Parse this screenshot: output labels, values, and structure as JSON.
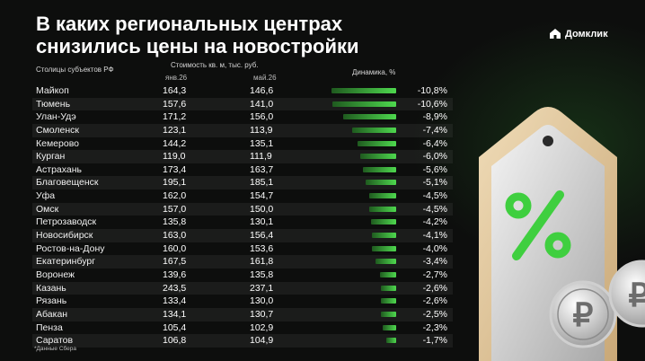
{
  "title": "В каких региональных центрах снизились цены на новостройки",
  "brand": "Домклик",
  "headers": {
    "city": "Столицы субъектов РФ",
    "price": "Стоимость кв. м, тыс. руб.",
    "jan": "янв.26",
    "may": "май.26",
    "dynamics": "Динамика, %"
  },
  "footnote": "*Данные Сбера",
  "colors": {
    "bar_start": "#1f5a1f",
    "bar_end": "#4ed84e",
    "background": "#0d0e0d",
    "accent_green": "#3fcf3f"
  },
  "chart_data": {
    "type": "table",
    "columns": [
      "Столицы субъектов РФ",
      "янв.26",
      "май.26",
      "Динамика, %"
    ],
    "rows": [
      {
        "city": "Майкоп",
        "jan": "164,3",
        "may": "146,6",
        "change": "-10,8%",
        "value": -10.8
      },
      {
        "city": "Тюмень",
        "jan": "157,6",
        "may": "141,0",
        "change": "-10,6%",
        "value": -10.6
      },
      {
        "city": "Улан-Удэ",
        "jan": "171,2",
        "may": "156,0",
        "change": "-8,9%",
        "value": -8.9
      },
      {
        "city": "Смоленск",
        "jan": "123,1",
        "may": "113,9",
        "change": "-7,4%",
        "value": -7.4
      },
      {
        "city": "Кемерово",
        "jan": "144,2",
        "may": "135,1",
        "change": "-6,4%",
        "value": -6.4
      },
      {
        "city": "Курган",
        "jan": "119,0",
        "may": "111,9",
        "change": "-6,0%",
        "value": -6.0
      },
      {
        "city": "Астрахань",
        "jan": "173,4",
        "may": "163,7",
        "change": "-5,6%",
        "value": -5.6
      },
      {
        "city": "Благовещенск",
        "jan": "195,1",
        "may": "185,1",
        "change": "-5,1%",
        "value": -5.1
      },
      {
        "city": "Уфа",
        "jan": "162,0",
        "may": "154,7",
        "change": "-4,5%",
        "value": -4.5
      },
      {
        "city": "Омск",
        "jan": "157,0",
        "may": "150,0",
        "change": "-4,5%",
        "value": -4.5
      },
      {
        "city": "Петрозаводск",
        "jan": "135,8",
        "may": "130,1",
        "change": "-4,2%",
        "value": -4.2
      },
      {
        "city": "Новосибирск",
        "jan": "163,0",
        "may": "156,4",
        "change": "-4,1%",
        "value": -4.1
      },
      {
        "city": "Ростов-на-Дону",
        "jan": "160,0",
        "may": "153,6",
        "change": "-4,0%",
        "value": -4.0
      },
      {
        "city": "Екатеринбург",
        "jan": "167,5",
        "may": "161,8",
        "change": "-3,4%",
        "value": -3.4
      },
      {
        "city": "Воронеж",
        "jan": "139,6",
        "may": "135,8",
        "change": "-2,7%",
        "value": -2.7
      },
      {
        "city": "Казань",
        "jan": "243,5",
        "may": "237,1",
        "change": "-2,6%",
        "value": -2.6
      },
      {
        "city": "Рязань",
        "jan": "133,4",
        "may": "130,0",
        "change": "-2,6%",
        "value": -2.6
      },
      {
        "city": "Абакан",
        "jan": "134,1",
        "may": "130,7",
        "change": "-2,5%",
        "value": -2.5
      },
      {
        "city": "Пенза",
        "jan": "105,4",
        "may": "102,9",
        "change": "-2,3%",
        "value": -2.3
      },
      {
        "city": "Саратов",
        "jan": "106,8",
        "may": "104,9",
        "change": "-1,7%",
        "value": -1.7
      }
    ]
  }
}
